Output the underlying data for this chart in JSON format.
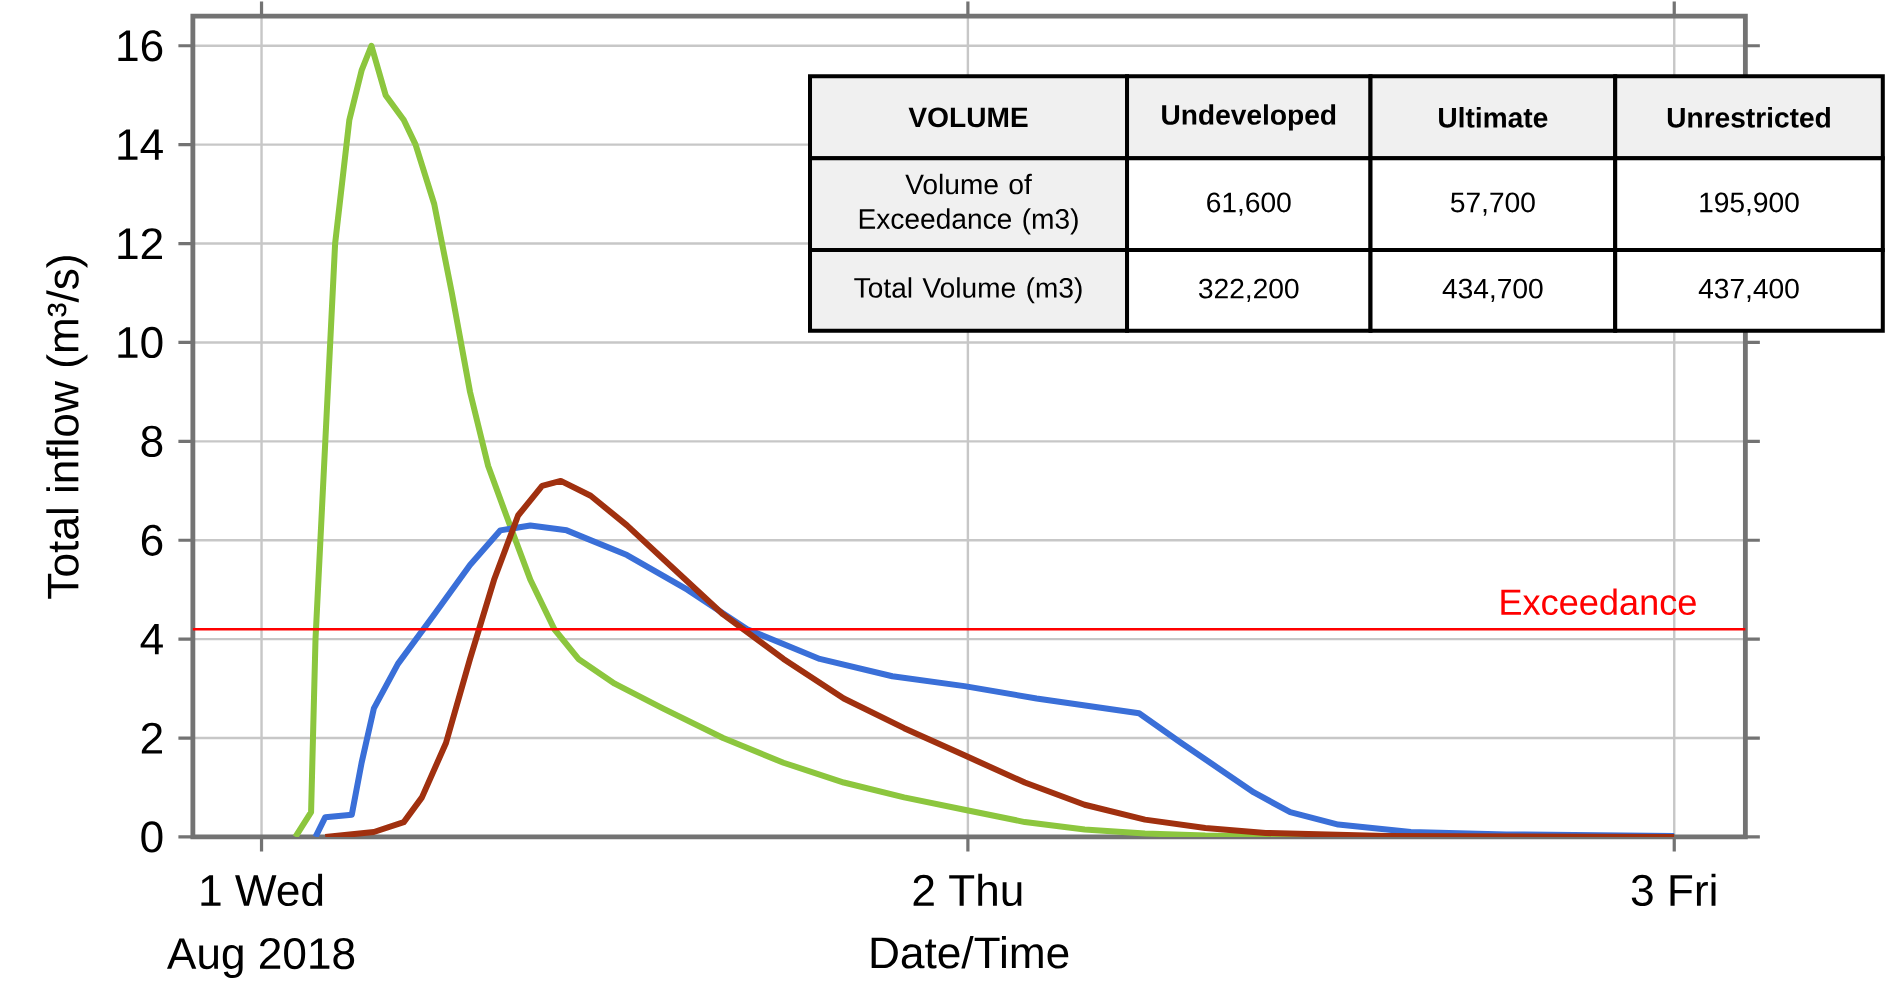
{
  "chart_data": {
    "type": "line",
    "xlabel": "Date/Time",
    "ylabel": "Total inflow (m³/s)",
    "xlim": [
      "2018-07-31T21:40",
      "2018-08-03T02:25"
    ],
    "ylim": [
      0,
      16.6
    ],
    "xticks": [
      {
        "value": "2018-08-01",
        "label": "1 Wed"
      },
      {
        "value": "2018-08-02",
        "label": "2 Thu"
      },
      {
        "value": "2018-08-03",
        "label": "3 Fri"
      }
    ],
    "yticks": [
      0,
      2,
      4,
      6,
      8,
      10,
      12,
      14,
      16
    ],
    "grid": true,
    "line_style": "solid",
    "marker": "none",
    "series": [
      {
        "color": "#8cc63e",
        "x": [
          "2018-08-01T01:09",
          "2018-08-01T01:41",
          "2018-08-01T01:50",
          "2018-08-01T02:10",
          "2018-08-01T02:30",
          "2018-08-01T02:59",
          "2018-08-01T03:24",
          "2018-08-01T03:44",
          "2018-08-01T04:13",
          "2018-08-01T04:50",
          "2018-08-01T05:14",
          "2018-08-01T05:52",
          "2018-08-01T06:28",
          "2018-08-01T07:05",
          "2018-08-01T07:42",
          "2018-08-01T08:19",
          "2018-08-01T09:08",
          "2018-08-01T09:57",
          "2018-08-01T10:46",
          "2018-08-01T12:00",
          "2018-08-01T13:38",
          "2018-08-01T15:41",
          "2018-08-01T17:44",
          "2018-08-01T19:47",
          "2018-08-01T21:50",
          "2018-08-01T23:53",
          "2018-08-02T01:56",
          "2018-08-02T03:58",
          "2018-08-02T06:01",
          "2018-08-02T08:04",
          "2018-08-02T12:10",
          "2018-08-03T00:00"
        ],
        "values": [
          0,
          0.5,
          4,
          8,
          12,
          14.5,
          15.5,
          16,
          15,
          14.5,
          14,
          12.8,
          11,
          9,
          7.5,
          6.5,
          5.2,
          4.2,
          3.6,
          3.1,
          2.6,
          2.0,
          1.5,
          1.1,
          0.8,
          0.55,
          0.3,
          0.15,
          0.07,
          0.03,
          0.01,
          0
        ]
      },
      {
        "color": "#3a6fd8",
        "x": [
          "2018-08-01T01:50",
          "2018-08-01T02:10",
          "2018-08-01T03:04",
          "2018-08-01T03:24",
          "2018-08-01T03:49",
          "2018-08-01T04:38",
          "2018-08-01T05:52",
          "2018-08-01T07:05",
          "2018-08-01T08:07",
          "2018-08-01T09:08",
          "2018-08-01T10:22",
          "2018-08-01T12:25",
          "2018-08-01T14:28",
          "2018-08-01T16:30",
          "2018-08-01T18:58",
          "2018-08-01T21:26",
          "2018-08-01T23:53",
          "2018-08-02T02:20",
          "2018-08-02T05:49",
          "2018-08-02T07:15",
          "2018-08-02T08:29",
          "2018-08-02T09:43",
          "2018-08-02T10:57",
          "2018-08-02T12:35",
          "2018-08-02T15:03",
          "2018-08-02T18:18",
          "2018-08-03T00:00"
        ],
        "values": [
          0,
          0.4,
          0.45,
          1.5,
          2.6,
          3.5,
          4.5,
          5.5,
          6.2,
          6.3,
          6.2,
          5.7,
          5.0,
          4.2,
          3.6,
          3.25,
          3.05,
          2.8,
          2.5,
          1.9,
          1.4,
          0.9,
          0.5,
          0.25,
          0.1,
          0.05,
          0.02
        ]
      },
      {
        "color": "#a0300f",
        "x": [
          "2018-08-01T02:10",
          "2018-08-01T03:49",
          "2018-08-01T04:50",
          "2018-08-01T05:27",
          "2018-08-01T06:16",
          "2018-08-01T07:05",
          "2018-08-01T07:54",
          "2018-08-01T08:43",
          "2018-08-01T09:32",
          "2018-08-01T10:10",
          "2018-08-01T11:11",
          "2018-08-01T12:25",
          "2018-08-01T14:03",
          "2018-08-01T15:41",
          "2018-08-01T17:44",
          "2018-08-01T19:47",
          "2018-08-01T21:50",
          "2018-08-01T23:53",
          "2018-08-02T01:56",
          "2018-08-02T03:58",
          "2018-08-02T06:01",
          "2018-08-02T08:04",
          "2018-08-02T10:07",
          "2018-08-02T14:12",
          "2018-08-03T00:00"
        ],
        "values": [
          0,
          0.1,
          0.3,
          0.8,
          1.9,
          3.6,
          5.2,
          6.5,
          7.1,
          7.2,
          6.9,
          6.3,
          5.4,
          4.5,
          3.6,
          2.8,
          2.2,
          1.65,
          1.1,
          0.65,
          0.35,
          0.18,
          0.08,
          0.02,
          0
        ]
      }
    ],
    "ref_lines": [
      {
        "axis": "y",
        "value": 4.2,
        "label": "Exceedance",
        "color": "#ff0000"
      }
    ],
    "annotations": [
      "Aug 2018",
      "VOLUME",
      "Undeveloped",
      "Ultimate",
      "Unrestricted",
      "Volume of Exceedance (m3)",
      "61,600",
      "57,700",
      "195,900",
      "Total Volume (m3)",
      "322,200",
      "434,700",
      "437,400"
    ]
  }
}
